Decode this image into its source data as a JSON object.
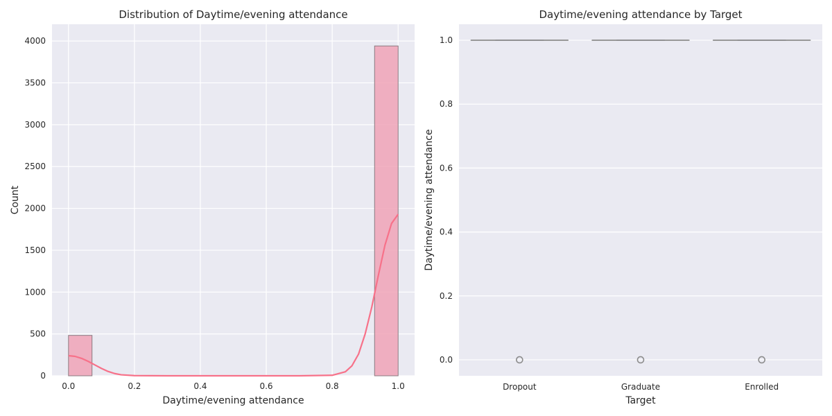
{
  "chart_data": [
    {
      "type": "bar",
      "subtype": "histogram_with_kde",
      "title": "Distribution of Daytime/evening attendance\t",
      "xlabel": "Daytime/evening attendance\t",
      "ylabel": "Count",
      "xlim": [
        -0.05,
        1.05
      ],
      "ylim": [
        0,
        4200
      ],
      "xticks": [
        0.0,
        0.2,
        0.4,
        0.6,
        0.8,
        1.0
      ],
      "xtick_labels": [
        "0.0",
        "0.2",
        "0.4",
        "0.6",
        "0.8",
        "1.0"
      ],
      "yticks": [
        0,
        500,
        1000,
        1500,
        2000,
        2500,
        3000,
        3500,
        4000
      ],
      "ytick_labels": [
        "0",
        "500",
        "1000",
        "1500",
        "2000",
        "2500",
        "3000",
        "3500",
        "4000"
      ],
      "grid": true,
      "bars": [
        {
          "x0": 0.0,
          "x1": 0.0714,
          "value": 483
        },
        {
          "x0": 0.9286,
          "x1": 1.0,
          "value": 3941
        }
      ],
      "kde": {
        "x": [
          0.0,
          0.02,
          0.04,
          0.06,
          0.08,
          0.1,
          0.12,
          0.14,
          0.16,
          0.2,
          0.3,
          0.5,
          0.7,
          0.8,
          0.84,
          0.86,
          0.88,
          0.9,
          0.92,
          0.94,
          0.96,
          0.98,
          1.0
        ],
        "y": [
          240,
          232,
          208,
          172,
          130,
          88,
          52,
          27,
          12,
          2,
          0,
          0,
          0,
          6,
          48,
          120,
          260,
          500,
          820,
          1200,
          1560,
          1820,
          1930
        ]
      },
      "bar_color": "#f0a3b7",
      "line_color": "#f77189"
    },
    {
      "type": "box",
      "title": "Daytime/evening attendance\t by Target",
      "xlabel": "Target",
      "ylabel": "Daytime/evening attendance\t",
      "ylim": [
        -0.05,
        1.05
      ],
      "yticks": [
        0.0,
        0.2,
        0.4,
        0.6,
        0.8,
        1.0
      ],
      "ytick_labels": [
        "0.0",
        "0.2",
        "0.4",
        "0.6",
        "0.8",
        "1.0"
      ],
      "categories": [
        "Dropout",
        "Graduate",
        "Enrolled"
      ],
      "grid": true,
      "boxes": [
        {
          "category": "Dropout",
          "q1": 1.0,
          "median": 1.0,
          "q3": 1.0,
          "whisker_low": 1.0,
          "whisker_high": 1.0,
          "outliers": [
            0.0
          ]
        },
        {
          "category": "Graduate",
          "q1": 1.0,
          "median": 1.0,
          "q3": 1.0,
          "whisker_low": 1.0,
          "whisker_high": 1.0,
          "outliers": [
            0.0
          ]
        },
        {
          "category": "Enrolled",
          "q1": 1.0,
          "median": 1.0,
          "q3": 1.0,
          "whisker_low": 1.0,
          "whisker_high": 1.0,
          "outliers": [
            0.0
          ]
        }
      ],
      "line_color": "#8c8c8c",
      "outlier_color": "#8c8c8c"
    }
  ]
}
